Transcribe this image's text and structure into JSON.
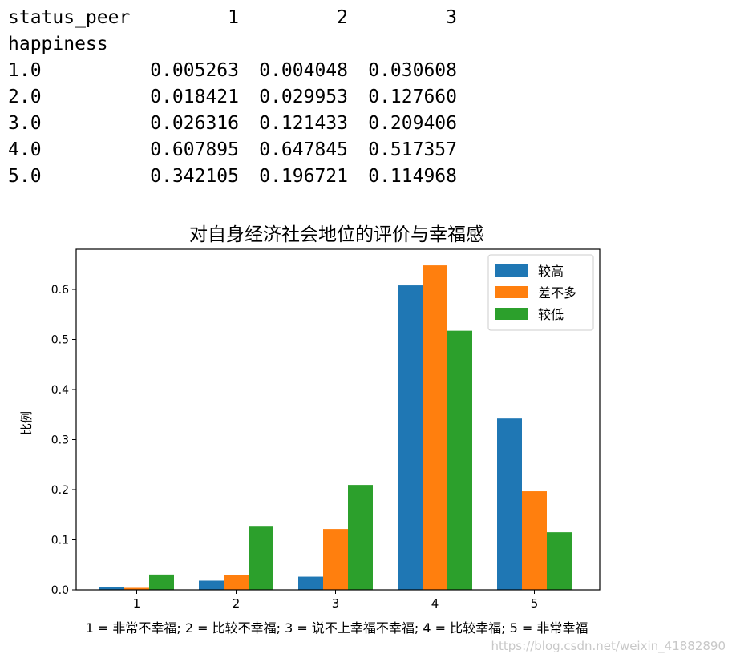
{
  "dataframe": {
    "columns_name": "status_peer",
    "columns": [
      "1",
      "2",
      "3"
    ],
    "index_name": "happiness",
    "rows": [
      {
        "index": "1.0",
        "values": [
          "0.005263",
          "0.004048",
          "0.030608"
        ]
      },
      {
        "index": "2.0",
        "values": [
          "0.018421",
          "0.029953",
          "0.127660"
        ]
      },
      {
        "index": "3.0",
        "values": [
          "0.026316",
          "0.121433",
          "0.209406"
        ]
      },
      {
        "index": "4.0",
        "values": [
          "0.607895",
          "0.647845",
          "0.517357"
        ]
      },
      {
        "index": "5.0",
        "values": [
          "0.342105",
          "0.196721",
          "0.114968"
        ]
      }
    ]
  },
  "chart_data": {
    "type": "bar",
    "title": "对自身经济社会地位的评价与幸福感",
    "xlabel": "1 = 非常不幸福; 2 = 比较不幸福; 3 = 说不上幸福不幸福; 4 = 比较幸福; 5 = 非常幸福",
    "ylabel": "比例",
    "categories": [
      "1",
      "2",
      "3",
      "4",
      "5"
    ],
    "series": [
      {
        "name": "较高",
        "color": "#1f77b4",
        "values": [
          0.005263,
          0.018421,
          0.026316,
          0.607895,
          0.342105
        ]
      },
      {
        "name": "差不多",
        "color": "#ff7f0e",
        "values": [
          0.004048,
          0.029953,
          0.121433,
          0.647845,
          0.196721
        ]
      },
      {
        "name": "较低",
        "color": "#2ca02c",
        "values": [
          0.030608,
          0.12766,
          0.209406,
          0.517357,
          0.114968
        ]
      }
    ],
    "ylim": [
      0,
      0.68
    ],
    "yticks": [
      "0.0",
      "0.1",
      "0.2",
      "0.3",
      "0.4",
      "0.5",
      "0.6"
    ],
    "legend_position": "upper-right",
    "grid": false
  },
  "watermark": "https://blog.csdn.net/weixin_41882890"
}
